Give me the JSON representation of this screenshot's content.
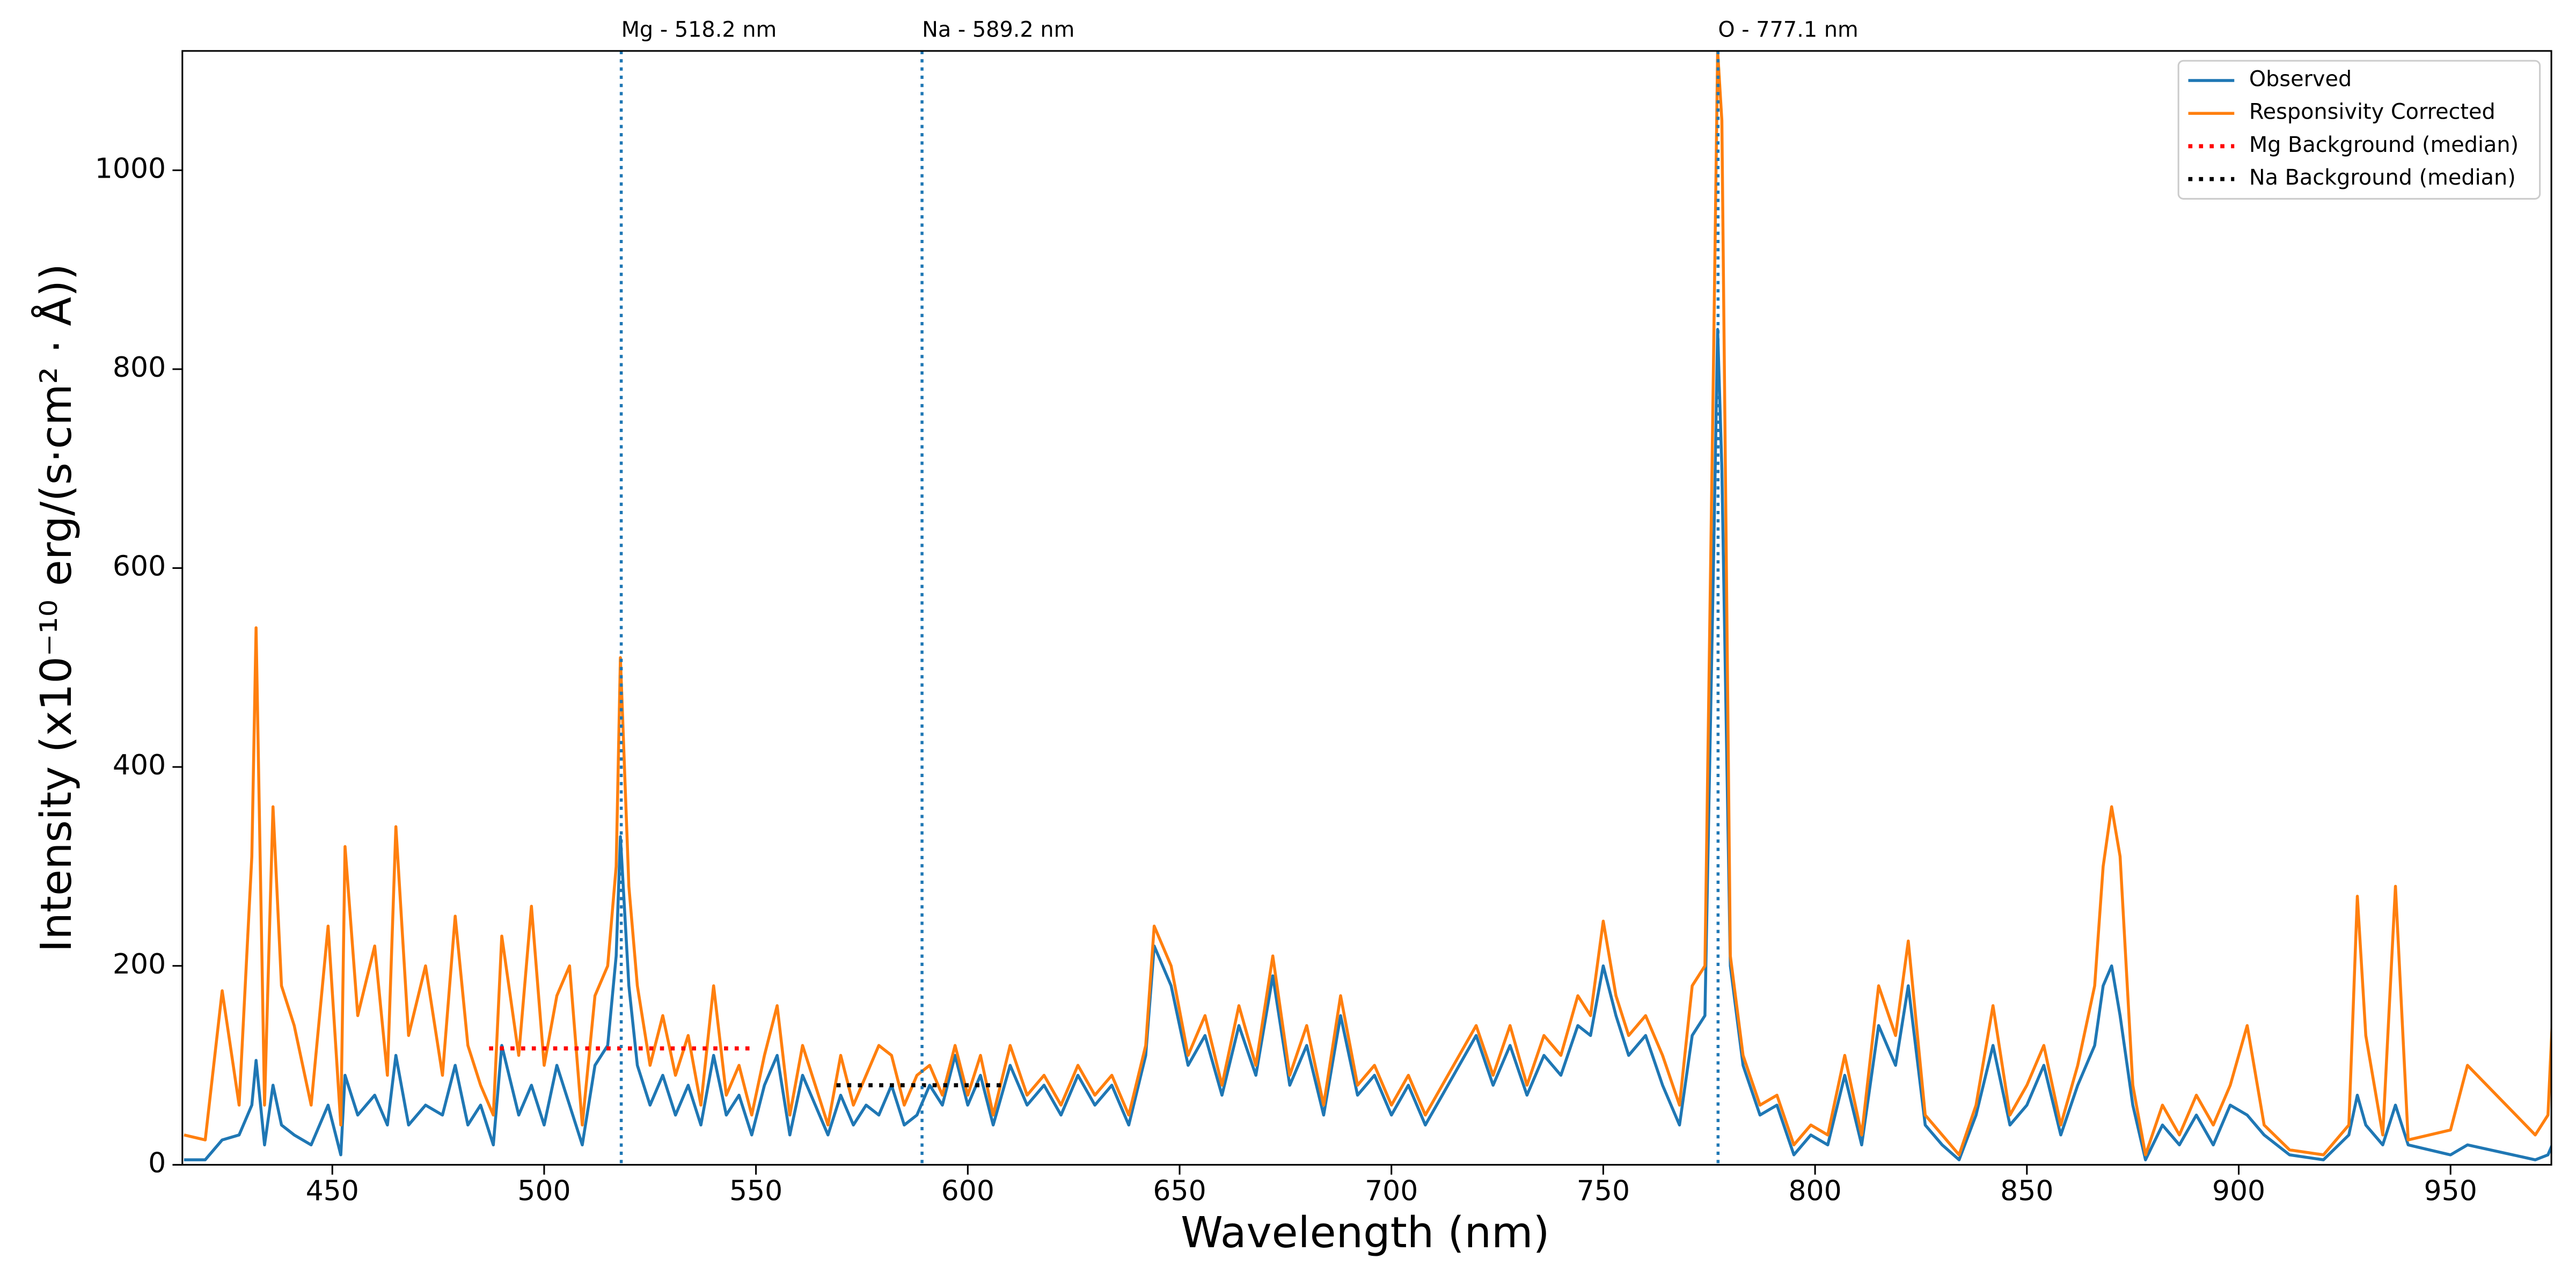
{
  "chart_data": {
    "type": "line",
    "xlabel": "Wavelength (nm)",
    "ylabel": "Intensity (x10⁻¹⁰ erg/(s·cm² · Å))",
    "xlim": [
      414.6,
      973.8
    ],
    "ylim": [
      0,
      1120
    ],
    "xticks": [
      450,
      500,
      550,
      600,
      650,
      700,
      750,
      800,
      850,
      900,
      950
    ],
    "yticks": [
      0,
      200,
      400,
      600,
      800,
      1000
    ],
    "legend": "upper right",
    "x": [
      415,
      420,
      424,
      428,
      431,
      432,
      434,
      436,
      438,
      441,
      445,
      449,
      452,
      453,
      456,
      460,
      463,
      465,
      468,
      472,
      476,
      479,
      482,
      485,
      488,
      490,
      494,
      497,
      500,
      503,
      506,
      509,
      512,
      515,
      517,
      518,
      520,
      522,
      525,
      528,
      531,
      534,
      537,
      540,
      543,
      546,
      549,
      552,
      555,
      558,
      561,
      564,
      567,
      570,
      573,
      576,
      579,
      582,
      585,
      588,
      591,
      594,
      597,
      600,
      603,
      606,
      610,
      614,
      618,
      622,
      626,
      630,
      634,
      638,
      642,
      644,
      648,
      652,
      656,
      660,
      664,
      668,
      672,
      676,
      680,
      684,
      688,
      692,
      696,
      700,
      704,
      708,
      712,
      716,
      720,
      724,
      728,
      732,
      736,
      740,
      744,
      747,
      750,
      753,
      756,
      760,
      764,
      768,
      771,
      774,
      776,
      777,
      778,
      780,
      783,
      787,
      791,
      795,
      799,
      803,
      807,
      811,
      815,
      819,
      822,
      826,
      830,
      834,
      838,
      842,
      846,
      850,
      854,
      858,
      862,
      866,
      868,
      870,
      872,
      875,
      878,
      882,
      886,
      890,
      894,
      898,
      902,
      906,
      912,
      920,
      926,
      928,
      930,
      934,
      937,
      940,
      950,
      954,
      970,
      973,
      975
    ],
    "series": [
      {
        "name": "Observed",
        "color": "#1f77b4",
        "style": "solid",
        "values": [
          5,
          5,
          25,
          30,
          60,
          105,
          20,
          80,
          40,
          30,
          20,
          60,
          10,
          90,
          50,
          70,
          40,
          110,
          40,
          60,
          50,
          100,
          40,
          60,
          20,
          120,
          50,
          80,
          40,
          100,
          60,
          20,
          100,
          120,
          210,
          330,
          180,
          100,
          60,
          90,
          50,
          80,
          40,
          110,
          50,
          70,
          30,
          80,
          110,
          30,
          90,
          60,
          30,
          70,
          40,
          60,
          50,
          80,
          40,
          50,
          80,
          60,
          110,
          60,
          90,
          40,
          100,
          60,
          80,
          50,
          90,
          60,
          80,
          40,
          110,
          220,
          180,
          100,
          130,
          70,
          140,
          90,
          190,
          80,
          120,
          50,
          150,
          70,
          90,
          50,
          80,
          40,
          70,
          100,
          130,
          80,
          120,
          70,
          110,
          90,
          140,
          130,
          200,
          150,
          110,
          130,
          80,
          40,
          130,
          150,
          600,
          840,
          700,
          200,
          100,
          50,
          60,
          10,
          30,
          20,
          90,
          20,
          140,
          100,
          180,
          40,
          20,
          5,
          50,
          120,
          40,
          60,
          100,
          30,
          80,
          120,
          180,
          200,
          150,
          60,
          5,
          40,
          20,
          50,
          20,
          60,
          50,
          30,
          10,
          5,
          30,
          70,
          40,
          20,
          60,
          20,
          10,
          20,
          5,
          10,
          30
        ]
      },
      {
        "name": "Responsivity Corrected",
        "color": "#ff7f0e",
        "style": "solid",
        "values": [
          30,
          25,
          175,
          60,
          310,
          540,
          60,
          360,
          180,
          140,
          60,
          240,
          40,
          320,
          150,
          220,
          90,
          340,
          130,
          200,
          90,
          250,
          120,
          80,
          50,
          230,
          110,
          260,
          100,
          170,
          200,
          40,
          170,
          200,
          300,
          510,
          280,
          180,
          100,
          150,
          90,
          130,
          60,
          180,
          70,
          100,
          50,
          110,
          160,
          50,
          120,
          80,
          40,
          110,
          60,
          90,
          120,
          110,
          60,
          90,
          100,
          70,
          120,
          70,
          110,
          50,
          120,
          70,
          90,
          60,
          100,
          70,
          90,
          50,
          120,
          240,
          200,
          110,
          150,
          80,
          160,
          100,
          210,
          90,
          140,
          60,
          170,
          80,
          100,
          60,
          90,
          50,
          80,
          110,
          140,
          90,
          140,
          80,
          130,
          110,
          170,
          150,
          245,
          170,
          130,
          150,
          110,
          60,
          180,
          200,
          800,
          1120,
          1050,
          210,
          110,
          60,
          70,
          20,
          40,
          30,
          110,
          30,
          180,
          130,
          225,
          50,
          30,
          10,
          60,
          160,
          50,
          80,
          120,
          40,
          100,
          180,
          300,
          360,
          310,
          80,
          10,
          60,
          30,
          70,
          40,
          80,
          140,
          40,
          15,
          10,
          40,
          270,
          130,
          30,
          280,
          25,
          35,
          100,
          30,
          50,
          235
        ]
      },
      {
        "name": "Mg Background (median)",
        "color": "#ff0000",
        "style": "dotted",
        "x": [
          487,
          550
        ],
        "values": [
          117,
          117
        ]
      },
      {
        "name": "Na Background (median)",
        "color": "#000000",
        "style": "dotted",
        "x": [
          569,
          608
        ],
        "values": [
          80,
          80
        ]
      }
    ],
    "annotations": [
      {
        "label": "Mg - 518.2 nm",
        "x": 518.2
      },
      {
        "label": "Na - 589.2 nm",
        "x": 589.2
      },
      {
        "label": "O - 777.1 nm",
        "x": 777.1
      }
    ],
    "annotation_color": "#1f77b4"
  }
}
